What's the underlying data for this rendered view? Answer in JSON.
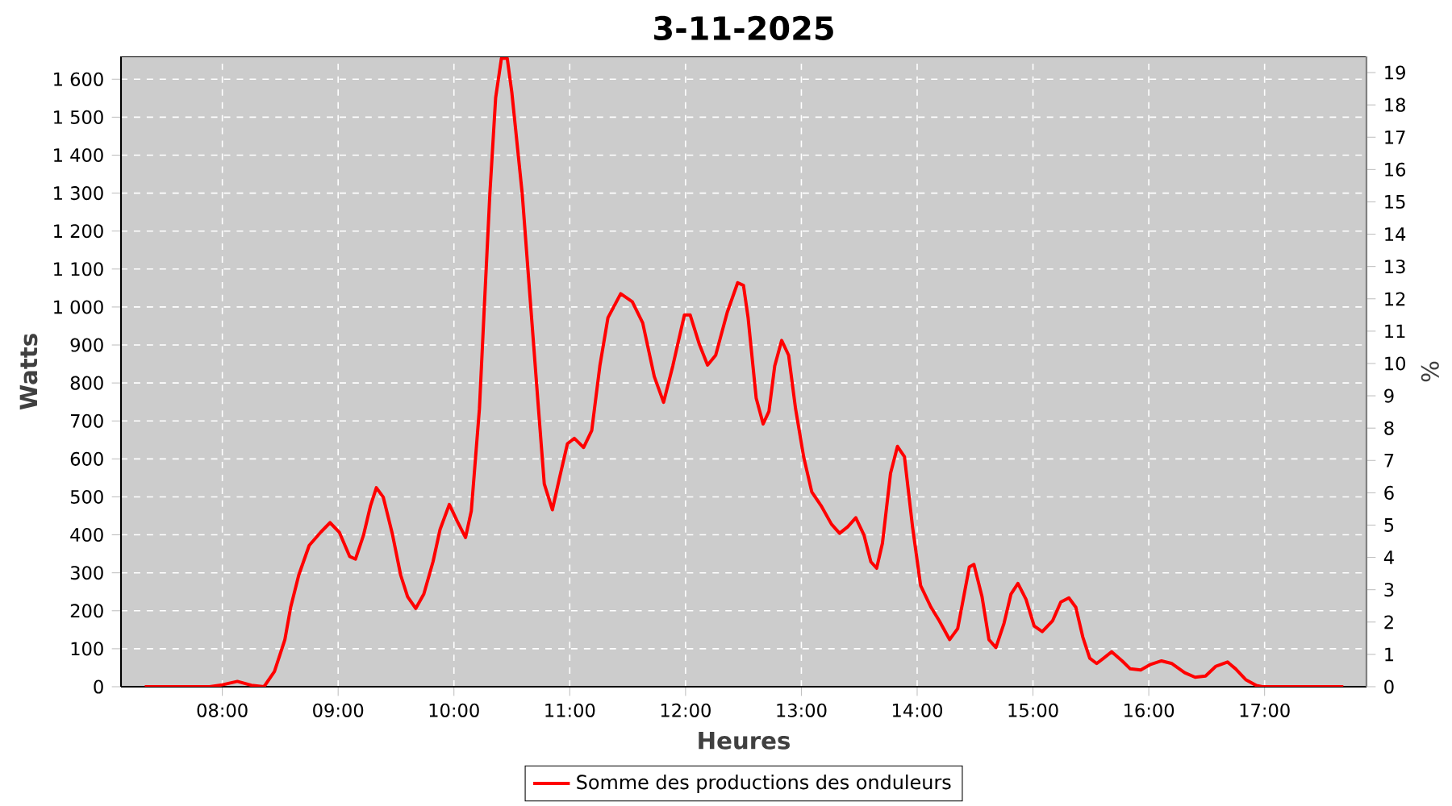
{
  "chart_data": {
    "type": "line",
    "title": "3-11-2025",
    "xlabel": "Heures",
    "ylabel": "Watts",
    "y2label": "%",
    "xlim": [
      7.125,
      17.88
    ],
    "ylim": [
      0,
      1660
    ],
    "y2lim": [
      0,
      19.5
    ],
    "xticks": [
      {
        "value": 8,
        "label": "08:00"
      },
      {
        "value": 9,
        "label": "09:00"
      },
      {
        "value": 10,
        "label": "10:00"
      },
      {
        "value": 11,
        "label": "11:00"
      },
      {
        "value": 12,
        "label": "12:00"
      },
      {
        "value": 13,
        "label": "13:00"
      },
      {
        "value": 14,
        "label": "14:00"
      },
      {
        "value": 15,
        "label": "15:00"
      },
      {
        "value": 16,
        "label": "16:00"
      },
      {
        "value": 17,
        "label": "17:00"
      }
    ],
    "yticks": [
      0,
      100,
      200,
      300,
      400,
      500,
      600,
      700,
      800,
      900,
      {
        "value": 1000,
        "label": "1 000"
      },
      {
        "value": 1100,
        "label": "1 100"
      },
      {
        "value": 1200,
        "label": "1 200"
      },
      {
        "value": 1300,
        "label": "1 300"
      },
      {
        "value": 1400,
        "label": "1 400"
      },
      {
        "value": 1500,
        "label": "1 500"
      },
      {
        "value": 1600,
        "label": "1 600"
      }
    ],
    "y2ticks": [
      0,
      1,
      2,
      3,
      4,
      5,
      6,
      7,
      8,
      9,
      10,
      11,
      12,
      13,
      14,
      15,
      16,
      17,
      18,
      19
    ],
    "grid": true,
    "legend": "bottom",
    "series": [
      {
        "name": "Somme des productions des onduleurs",
        "color": "#ff0000",
        "x": [
          7.33,
          7.89,
          8.0,
          8.13,
          8.25,
          8.36,
          8.45,
          8.54,
          8.59,
          8.66,
          8.75,
          8.85,
          8.93,
          9.01,
          9.1,
          9.15,
          9.22,
          9.28,
          9.33,
          9.39,
          9.47,
          9.54,
          9.6,
          9.67,
          9.74,
          9.82,
          9.88,
          9.96,
          10.03,
          10.1,
          10.15,
          10.22,
          10.26,
          10.31,
          10.36,
          10.41,
          10.46,
          10.5,
          10.59,
          10.66,
          10.73,
          10.78,
          10.85,
          10.91,
          10.98,
          11.04,
          11.12,
          11.19,
          11.26,
          11.33,
          11.44,
          11.54,
          11.63,
          11.73,
          11.81,
          11.89,
          11.99,
          12.04,
          12.12,
          12.19,
          12.26,
          12.36,
          12.45,
          12.5,
          12.54,
          12.61,
          12.67,
          12.72,
          12.77,
          12.83,
          12.89,
          12.95,
          13.02,
          13.09,
          13.17,
          13.26,
          13.33,
          13.4,
          13.47,
          13.54,
          13.6,
          13.65,
          13.7,
          13.77,
          13.83,
          13.89,
          13.96,
          14.03,
          14.12,
          14.19,
          14.28,
          14.35,
          14.45,
          14.49,
          14.56,
          14.62,
          14.68,
          14.75,
          14.81,
          14.87,
          14.94,
          15.01,
          15.08,
          15.17,
          15.24,
          15.31,
          15.37,
          15.43,
          15.49,
          15.55,
          15.61,
          15.68,
          15.77,
          15.84,
          15.93,
          16.01,
          16.11,
          16.2,
          16.31,
          16.4,
          16.49,
          16.58,
          16.68,
          16.75,
          16.84,
          16.93,
          16.98,
          17.68
        ],
        "values": [
          0,
          0,
          5,
          14,
          4,
          0,
          40,
          124,
          209,
          294,
          372,
          407,
          432,
          407,
          343,
          336,
          400,
          477,
          524,
          499,
          400,
          294,
          237,
          206,
          244,
          330,
          414,
          480,
          435,
          393,
          463,
          732,
          986,
          1297,
          1551,
          1655,
          1655,
          1565,
          1297,
          1014,
          732,
          534,
          466,
          548,
          640,
          654,
          630,
          675,
          845,
          972,
          1035,
          1014,
          958,
          817,
          749,
          845,
          979,
          979,
          901,
          847,
          873,
          986,
          1064,
          1057,
          972,
          760,
          692,
          725,
          845,
          912,
          873,
          732,
          605,
          513,
          477,
          428,
          404,
          421,
          445,
          400,
          329,
          312,
          378,
          562,
          633,
          606,
          421,
          266,
          209,
          174,
          124,
          153,
          315,
          322,
          237,
          124,
          103,
          167,
          244,
          272,
          230,
          160,
          145,
          174,
          223,
          234,
          209,
          131,
          75,
          61,
          75,
          92,
          68,
          47,
          44,
          58,
          68,
          61,
          37,
          25,
          28,
          54,
          65,
          47,
          18,
          3,
          0,
          0
        ]
      }
    ]
  }
}
